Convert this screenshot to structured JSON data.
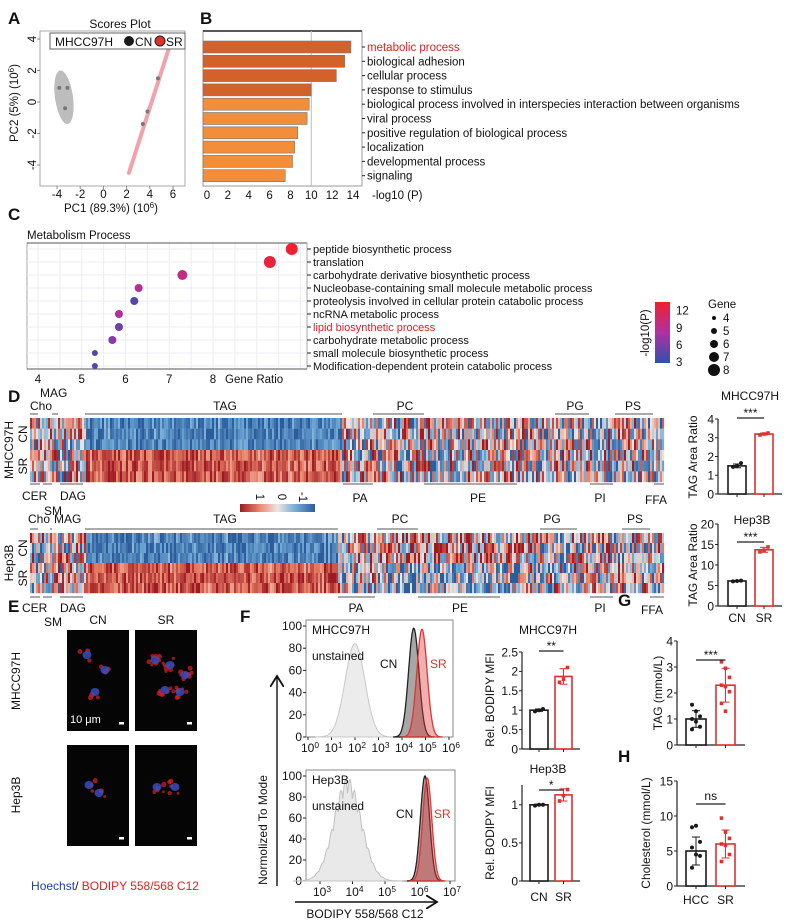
{
  "panel_labels": [
    "A",
    "B",
    "C",
    "D",
    "E",
    "F",
    "G",
    "H"
  ],
  "chart_data": [
    {
      "panel": "A",
      "type": "scatter",
      "title": "Scores Plot",
      "xlabel": "PC1 (89.3%) (10",
      "xlabel_sup": "6",
      "xlabel_end": ")",
      "ylabel": "PC2 (5%) (10",
      "ylabel_sup": "6",
      "ylabel_end": ")",
      "xlim": [
        -5.5,
        6.5
      ],
      "ylim": [
        -5,
        4.6
      ],
      "xticks": [
        -4,
        -2,
        0,
        2,
        4,
        6
      ],
      "yticks": [
        -4,
        -2,
        0,
        2,
        4
      ],
      "legend": {
        "title": "MHCC97H",
        "entries": [
          "CN",
          "SR"
        ],
        "placement": "top"
      },
      "series": [
        {
          "name": "CN",
          "color": "#1a1a1a",
          "ellipse_color": "#bdbdbd",
          "points": [
            [
              -3.8,
              0.9
            ],
            [
              -3.1,
              0.9
            ],
            [
              -3.3,
              -0.4
            ]
          ]
        },
        {
          "name": "SR",
          "color": "#e03030",
          "ellipse_color": "#f2a2aa",
          "points": [
            [
              4.7,
              1.5
            ],
            [
              3.8,
              -0.6
            ],
            [
              3.4,
              -1.4
            ]
          ]
        }
      ]
    },
    {
      "panel": "B",
      "type": "bar",
      "orientation": "horizontal",
      "xlabel": "-log10 (P)",
      "xlim": [
        0,
        14
      ],
      "xticks": [
        0,
        2,
        4,
        6,
        8,
        10,
        12,
        14
      ],
      "categories": [
        "metabolic process",
        "biological adhesion",
        "cellular process",
        "response to stimulus",
        "biological process involved in interspecies interaction between organisms",
        "viral process",
        "positive regulation of biological process",
        "localization",
        "developmental process",
        "signaling"
      ],
      "values": [
        13.8,
        13.2,
        12.4,
        10.0,
        9.8,
        9.6,
        8.7,
        8.4,
        8.2,
        7.5
      ],
      "highlight_index": 0,
      "highlight_color": "#e02020",
      "bar_colors": {
        "dark": "#d2622a",
        "light": "#f28d3a"
      },
      "dark_count": 4,
      "reference_line": 10
    },
    {
      "panel": "C",
      "type": "scatter",
      "title": "Metabolism Process",
      "xlabel": "Gene Ratio",
      "xticks": [
        4,
        5,
        6,
        7,
        8
      ],
      "xlim": [
        3.8,
        10
      ],
      "categories": [
        "peptide biosynthetic process",
        "translation",
        "carbohydrate derivative biosynthetic process",
        "Nucleobase-containing small molecule metabolic process",
        "proteolysis involved in cellular protein catabolic process",
        "ncRNA metabolic process",
        "lipid biosynthetic process",
        "carbohydrate metabolic process",
        "small molecule biosynthetic process",
        "Modification-dependent protein catabolic process"
      ],
      "gene_ratio": [
        9.8,
        9.3,
        7.3,
        6.3,
        6.2,
        5.85,
        5.85,
        5.7,
        5.3,
        5.3
      ],
      "neg_log10_p": [
        13,
        12.5,
        9.5,
        8.5,
        4.5,
        8.5,
        5.5,
        6.5,
        4.5,
        4.5
      ],
      "gene": [
        8,
        8,
        7,
        6,
        6,
        6,
        6,
        6,
        5,
        5
      ],
      "highlight_index": 6,
      "highlight_color": "#e02020",
      "colorbar": {
        "label": "-log10(P)",
        "ticks": [
          12,
          9,
          6,
          3
        ],
        "range": [
          3,
          13
        ],
        "colors": [
          "#3050b0",
          "#b030a0",
          "#f02030"
        ]
      },
      "size_legend": {
        "title": "Gene",
        "values": [
          4,
          5,
          6,
          7,
          8
        ]
      }
    },
    {
      "panel": "D",
      "type": "heatmap",
      "colorbar": {
        "ticks": [
          "1",
          "0",
          "-1"
        ],
        "colors": [
          "#9e1a22",
          "#e8826a",
          "#ece6e2",
          "#6fa8d4",
          "#2c5c9c"
        ]
      },
      "heatmaps": [
        {
          "cell_line": "MHCC97H",
          "groups": [
            "CN",
            "SR"
          ],
          "classes_top": [
            "Cho",
            "MAG",
            "TAG",
            "PC",
            "PG",
            "PS"
          ],
          "classes_bottom": [
            "CER",
            "SM",
            "DAG",
            "PA",
            "PE",
            "PI",
            "FFA"
          ]
        },
        {
          "cell_line": "Hep3B",
          "groups": [
            "CN",
            "SR"
          ],
          "classes_top": [
            "Cho",
            "MAG",
            "TAG",
            "PC",
            "PG",
            "PS"
          ],
          "classes_bottom": [
            "CER",
            "SM",
            "DAG",
            "PA",
            "PE",
            "PI",
            "FFA"
          ]
        }
      ]
    },
    {
      "panel": "D-right-1",
      "type": "bar",
      "title": "MHCC97H",
      "ylabel": "TAG Area Ratio",
      "categories": [
        "",
        ""
      ],
      "values": [
        1.5,
        3.2
      ],
      "sd": [
        0.1,
        0.05
      ],
      "points": [
        [
          1.45,
          1.5,
          1.65
        ],
        [
          3.15,
          3.2,
          3.25
        ]
      ],
      "ylim": [
        0,
        4
      ],
      "yticks": [
        0,
        1,
        2,
        3,
        4
      ],
      "significance": "***"
    },
    {
      "panel": "D-right-2",
      "type": "bar",
      "title": "Hep3B",
      "ylabel": "TAG Area Ratio",
      "categories": [
        "CN",
        "SR"
      ],
      "values": [
        6.1,
        13.7
      ],
      "sd": [
        0.1,
        0.6
      ],
      "points": [
        [
          6.0,
          6.1,
          6.2
        ],
        [
          13.2,
          13.6,
          14.4
        ]
      ],
      "ylim": [
        0,
        20
      ],
      "yticks": [
        0,
        5,
        10,
        15,
        20
      ],
      "significance": "***"
    },
    {
      "panel": "F-hist-1",
      "type": "area",
      "cell_line": "MHCC97H",
      "xscale": "log",
      "xticks_exp": [
        0,
        1,
        2,
        3,
        4,
        5,
        6
      ],
      "yticks": [
        0,
        20,
        40,
        60,
        80,
        100
      ],
      "ylim": [
        0,
        100
      ],
      "series": [
        {
          "name": "unstained",
          "peak_log10": 2.0,
          "peak": 84,
          "color": "#c8c8c8"
        },
        {
          "name": "CN",
          "peak_log10": 4.5,
          "peak": 98,
          "color": "#222222"
        },
        {
          "name": "SR",
          "peak_log10": 4.85,
          "peak": 97,
          "color": "#e03535"
        }
      ]
    },
    {
      "panel": "F-hist-2",
      "type": "area",
      "cell_line": "Hep3B",
      "xscale": "log",
      "xticks_exp": [
        3,
        4,
        5,
        6,
        7
      ],
      "yticks": [
        0,
        20,
        40,
        60,
        80,
        100
      ],
      "ylim": [
        0,
        100
      ],
      "series": [
        {
          "name": "unstained",
          "peak_log10": 3.85,
          "peak": 98,
          "color": "#c0c0c0"
        },
        {
          "name": "CN",
          "peak_log10": 6.23,
          "peak": 100,
          "color": "#222222"
        },
        {
          "name": "SR",
          "peak_log10": 6.3,
          "peak": 98,
          "color": "#e03535"
        }
      ],
      "ylabel": "Normolized To Mode",
      "xlabel": "BODIPY 558/568 C12"
    },
    {
      "panel": "F-bar-1",
      "type": "bar",
      "title": "MHCC97H",
      "ylabel": "Rel. BODIPY MFI",
      "categories": [
        "",
        ""
      ],
      "values": [
        1.0,
        1.87
      ],
      "sd": [
        0.03,
        0.2
      ],
      "points": [
        [
          0.97,
          1.0,
          1.03
        ],
        [
          1.72,
          1.8,
          2.1
        ]
      ],
      "ylim": [
        0,
        2.5
      ],
      "yticks": [
        0,
        0.5,
        1,
        1.5,
        2,
        2.5
      ],
      "significance": "**"
    },
    {
      "panel": "F-bar-2",
      "type": "bar",
      "title": "Hep3B",
      "ylabel": "Rel. BODIPY MFI",
      "categories": [
        "CN",
        "SR"
      ],
      "values": [
        1.0,
        1.13
      ],
      "sd": [
        0.01,
        0.08
      ],
      "points": [
        [
          0.99,
          1.0,
          1.0
        ],
        [
          1.05,
          1.12,
          1.2
        ]
      ],
      "ylim": [
        0,
        1.26
      ],
      "yticks": [
        0,
        0.5,
        1
      ],
      "significance": "*"
    },
    {
      "panel": "G",
      "type": "bar",
      "ylabel": "TAG (mmol/L)",
      "categories": [
        "",
        ""
      ],
      "values": [
        1.0,
        2.3
      ],
      "sd": [
        0.32,
        0.65
      ],
      "points": [
        [
          1.55,
          1.3,
          1.1,
          1.0,
          0.9,
          0.7,
          0.6
        ],
        [
          3.2,
          2.95,
          2.6,
          2.3,
          2.25,
          2.05,
          1.6,
          1.3
        ]
      ],
      "ylim": [
        0,
        4
      ],
      "yticks": [
        0,
        1,
        2,
        3,
        4
      ],
      "significance": "***"
    },
    {
      "panel": "H",
      "type": "bar",
      "ylabel": "Cholesterol (mmol/L)",
      "categories": [
        "HCC",
        "SR"
      ],
      "values": [
        5.0,
        6.0
      ],
      "sd": [
        2.0,
        2.0
      ],
      "points": [
        [
          8.4,
          8.6,
          6.3,
          5.5,
          4.5,
          4.3,
          2.6
        ],
        [
          9.7,
          7.7,
          6.8,
          6.0,
          5.8,
          4.5,
          3.5
        ]
      ],
      "ylim": [
        0,
        15
      ],
      "yticks": [
        0,
        5,
        10,
        15
      ],
      "significance": "ns"
    }
  ],
  "panel_E": {
    "columns": [
      "CN",
      "SR"
    ],
    "rows": [
      "MHCC97H",
      "Hep3B"
    ],
    "scale_bar": "10 μm",
    "caption": {
      "part1": "Hoechst",
      "sep": "/ ",
      "part2": "BODIPY 558/568 C12"
    },
    "colors": {
      "hoechst": "#2040b0",
      "bodipy": "#e02020"
    }
  },
  "colors": {
    "cn": "#1a1a1a",
    "sr": "#e03030"
  }
}
